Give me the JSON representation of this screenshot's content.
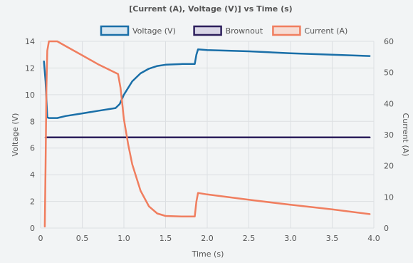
{
  "chart_data": {
    "type": "line",
    "title": "[Current (A), Voltage (V)] vs Time (s)",
    "xlabel": "Time (s)",
    "ylabel_left": "Voltage (V)",
    "ylabel_right": "Current (A)",
    "xlim": [
      0,
      4.0
    ],
    "ylim_left": [
      0,
      14
    ],
    "ylim_right": [
      0,
      60
    ],
    "x_ticks": [
      "0",
      "0.5",
      "1.0",
      "1.5",
      "2.0",
      "2.5",
      "3.0",
      "3.5",
      "4.0"
    ],
    "y_left_ticks": [
      "0",
      "2",
      "4",
      "6",
      "8",
      "10",
      "12",
      "14"
    ],
    "y_right_ticks": [
      "0",
      "10",
      "20",
      "30",
      "40",
      "50",
      "60"
    ],
    "grid": true,
    "legend_position": "top-center",
    "series": [
      {
        "name": "Voltage (V)",
        "axis": "left",
        "color": "#1a6fa8",
        "points": [
          [
            0.04,
            12.5
          ],
          [
            0.06,
            11.0
          ],
          [
            0.08,
            8.3
          ],
          [
            0.1,
            8.25
          ],
          [
            0.2,
            8.25
          ],
          [
            0.3,
            8.4
          ],
          [
            0.5,
            8.6
          ],
          [
            0.7,
            8.8
          ],
          [
            0.9,
            9.0
          ],
          [
            0.95,
            9.3
          ],
          [
            1.0,
            10.0
          ],
          [
            1.1,
            11.0
          ],
          [
            1.2,
            11.6
          ],
          [
            1.3,
            11.95
          ],
          [
            1.4,
            12.15
          ],
          [
            1.5,
            12.25
          ],
          [
            1.7,
            12.3
          ],
          [
            1.85,
            12.3
          ],
          [
            1.87,
            13.0
          ],
          [
            1.89,
            13.4
          ],
          [
            2.0,
            13.35
          ],
          [
            2.5,
            13.25
          ],
          [
            3.0,
            13.1
          ],
          [
            3.5,
            13.0
          ],
          [
            3.95,
            12.9
          ]
        ]
      },
      {
        "name": "Brownout",
        "axis": "left",
        "color": "#2d1f5c",
        "points": [
          [
            0.06,
            6.8
          ],
          [
            3.95,
            6.8
          ]
        ]
      },
      {
        "name": "Current (A)",
        "axis": "right",
        "color": "#f07e5f",
        "points": [
          [
            0.05,
            0.5
          ],
          [
            0.06,
            20
          ],
          [
            0.07,
            45
          ],
          [
            0.08,
            57
          ],
          [
            0.1,
            60
          ],
          [
            0.2,
            60
          ],
          [
            0.3,
            58.5
          ],
          [
            0.5,
            55.5
          ],
          [
            0.7,
            52.5
          ],
          [
            0.93,
            49.5
          ],
          [
            0.96,
            45
          ],
          [
            1.0,
            35
          ],
          [
            1.05,
            27
          ],
          [
            1.1,
            20.5
          ],
          [
            1.2,
            12
          ],
          [
            1.3,
            7
          ],
          [
            1.4,
            4.7
          ],
          [
            1.5,
            3.9
          ],
          [
            1.7,
            3.7
          ],
          [
            1.85,
            3.7
          ],
          [
            1.87,
            8.5
          ],
          [
            1.89,
            11.3
          ],
          [
            2.0,
            10.8
          ],
          [
            2.5,
            9.1
          ],
          [
            3.0,
            7.5
          ],
          [
            3.5,
            6.0
          ],
          [
            3.95,
            4.5
          ]
        ]
      }
    ]
  }
}
